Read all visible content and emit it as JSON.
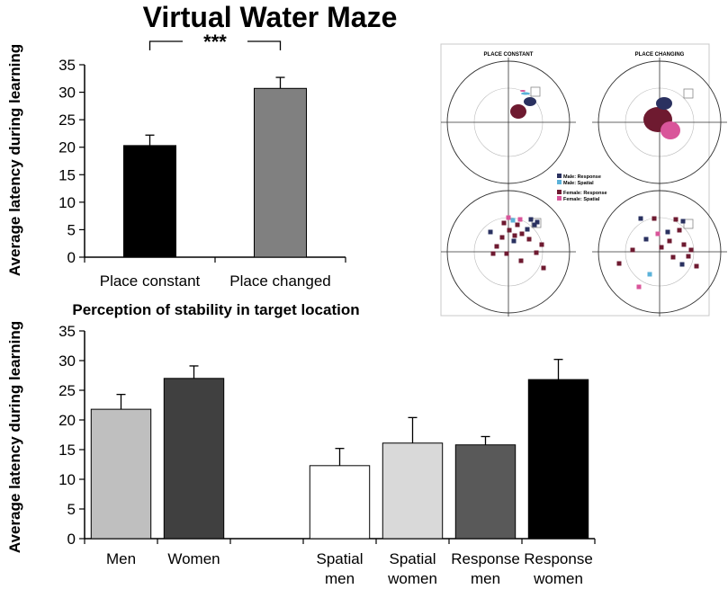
{
  "figure": {
    "title": "Virtual Water Maze"
  },
  "chart_data": [
    {
      "type": "bar",
      "title": "",
      "xlabel": "",
      "ylabel": "Average latency during learning",
      "ylim": [
        0,
        35
      ],
      "yticks": [
        0,
        5,
        10,
        15,
        20,
        25,
        30,
        35
      ],
      "categories": [
        "Place constant",
        "Place changed"
      ],
      "values": [
        20.3,
        30.7
      ],
      "errors": [
        1.9,
        2.0
      ],
      "colors": [
        "#000000",
        "#808080"
      ],
      "significance": {
        "label": "***",
        "between": [
          0,
          1
        ]
      },
      "grid": false,
      "legend": "none"
    },
    {
      "type": "bar",
      "title": "Perception of stability in target location",
      "xlabel": "",
      "ylabel": "Average latency during learning",
      "ylim": [
        0,
        35
      ],
      "yticks": [
        0,
        5,
        10,
        15,
        20,
        25,
        30,
        35
      ],
      "categories": [
        "Men",
        "Women",
        "",
        "Spatial men",
        "Spatial women",
        "Response men",
        "Response women"
      ],
      "values": [
        21.8,
        27.0,
        null,
        12.3,
        16.1,
        15.8,
        26.8
      ],
      "errors": [
        2.5,
        2.1,
        null,
        2.9,
        4.3,
        1.4,
        3.4
      ],
      "colors": [
        "#bfbfbf",
        "#404040",
        null,
        "#ffffff",
        "#d9d9d9",
        "#595959",
        "#000000"
      ],
      "grid": false,
      "legend": "none"
    }
  ],
  "inset": {
    "panels": [
      {
        "title": "PLACE CONSTANT"
      },
      {
        "title": "PLACE CHANGING"
      },
      {
        "title": ""
      },
      {
        "title": ""
      }
    ],
    "legend": [
      {
        "label": "Male: Response",
        "color": "#2a3160"
      },
      {
        "label": "Male: Spatial",
        "color": "#5bb2d9"
      },
      {
        "label": "Female: Response",
        "color": "#6e1a30"
      },
      {
        "label": "Female: Spatial",
        "color": "#d9559a"
      }
    ],
    "colors": {
      "male_response": "#2a3160",
      "male_spatial": "#5bb2d9",
      "female_response": "#6e1a30",
      "female_spatial": "#d9559a"
    }
  }
}
